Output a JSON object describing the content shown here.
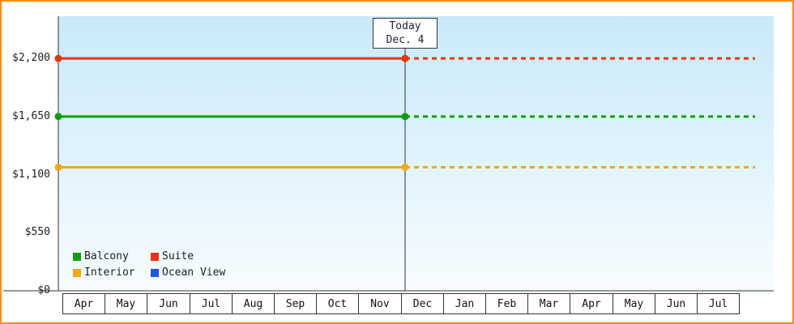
{
  "chart_data": {
    "type": "line",
    "title": "",
    "x_categories": [
      "Apr",
      "May",
      "Jun",
      "Jul",
      "Aug",
      "Sep",
      "Oct",
      "Nov",
      "Dec",
      "Jan",
      "Feb",
      "Mar",
      "Apr",
      "May",
      "Jun",
      "Jul"
    ],
    "y_ticks": [
      {
        "label": "$2,200",
        "value": 2200
      },
      {
        "label": "$1,650",
        "value": 1650
      },
      {
        "label": "$1,100",
        "value": 1100
      },
      {
        "label": "$550",
        "value": 550
      },
      {
        "label": "$0",
        "value": 0
      }
    ],
    "ylim": [
      0,
      2600
    ],
    "grid": false,
    "today_marker": {
      "label_line1": "Today",
      "label_line2": "Dec. 4",
      "category_index": 8,
      "category_fraction": 0.1
    },
    "series": [
      {
        "name": "Suite",
        "color": "#e8350f",
        "value": 2200,
        "solid_until_today": true,
        "dashed_after_today": true
      },
      {
        "name": "Balcony",
        "color": "#0f9d0f",
        "value": 1650,
        "solid_until_today": true,
        "dashed_after_today": true
      },
      {
        "name": "Interior",
        "color": "#f0a818",
        "value": 1170,
        "solid_until_today": true,
        "dashed_after_today": true
      },
      {
        "name": "Ocean View",
        "color": "#1e56e0",
        "value": null,
        "solid_until_today": false,
        "dashed_after_today": false
      }
    ],
    "legend": {
      "position": "bottom-left",
      "items": [
        {
          "label": "Balcony",
          "color": "#0f9d0f"
        },
        {
          "label": "Suite",
          "color": "#e8350f"
        },
        {
          "label": "Interior",
          "color": "#f0a818"
        },
        {
          "label": "Ocean View",
          "color": "#1e56e0"
        }
      ]
    },
    "colors": {
      "frame_border": "#ff8c00",
      "axis": "#333333",
      "plot_bg_top": "#c9e9f9",
      "plot_bg_bottom": "#f7fcff"
    }
  }
}
